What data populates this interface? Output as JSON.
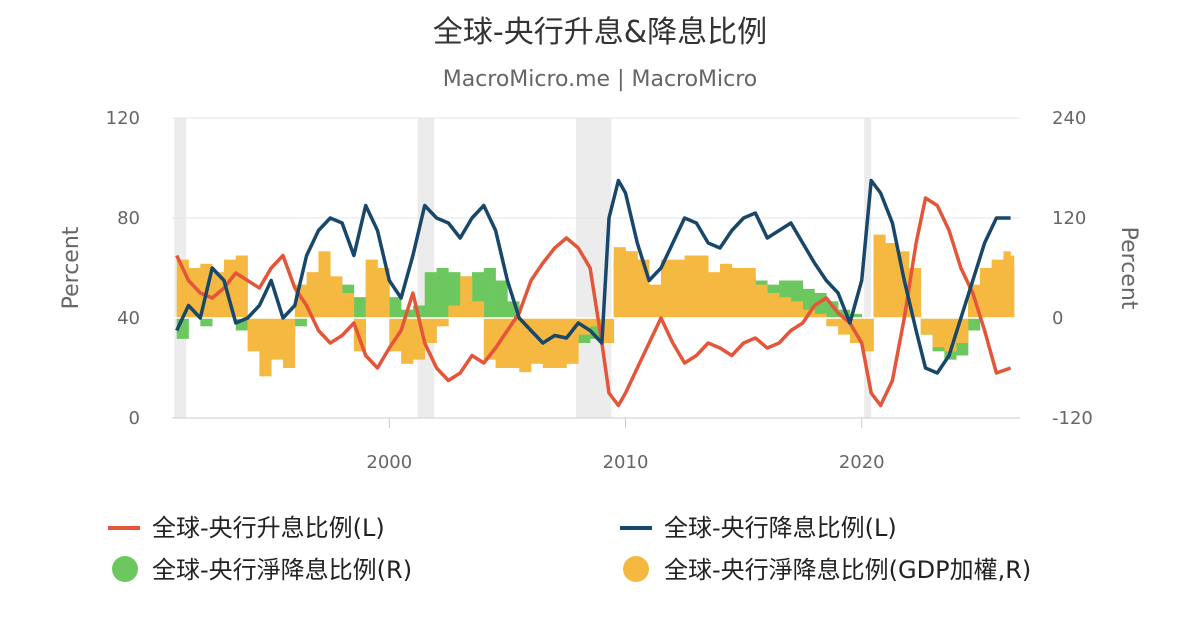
{
  "chart_data": {
    "type": "line",
    "title": "全球-央行升息&降息比例",
    "subtitle": "MacroMicro.me | MacroMicro",
    "left_axis": {
      "label": "Percent",
      "ylim": [
        0,
        120
      ],
      "ticks": [
        "0",
        "40",
        "80",
        "120"
      ]
    },
    "right_axis": {
      "label": "Percent",
      "ylim": [
        -120,
        240
      ],
      "ticks": [
        "-120",
        "0",
        "120",
        "240"
      ]
    },
    "x_axis": {
      "range": [
        1990.8,
        2026.7
      ],
      "ticks": [
        "2000",
        "2010",
        "2020"
      ]
    },
    "recessions": [
      [
        1990.9,
        1991.4
      ],
      [
        2001.2,
        2001.9
      ],
      [
        2007.9,
        2009.4
      ],
      [
        2020.1,
        2020.4
      ]
    ],
    "colors": {
      "hike": "#e4553a",
      "cut": "#19476a",
      "net_cut": "#6cc75f",
      "net_cut_gdp": "#f5b841",
      "recession": "#ececec"
    },
    "series": [
      {
        "name": "全球-央行升息比例(L)",
        "axis": "left",
        "kind": "line",
        "x": [
          1991.0,
          1991.5,
          1992.0,
          1992.5,
          1993.0,
          1993.5,
          1994.0,
          1994.5,
          1995.0,
          1995.5,
          1996.0,
          1996.5,
          1997.0,
          1997.5,
          1998.0,
          1998.5,
          1999.0,
          1999.5,
          2000.0,
          2000.5,
          2001.0,
          2001.5,
          2002.0,
          2002.5,
          2003.0,
          2003.5,
          2004.0,
          2004.5,
          2005.0,
          2005.5,
          2006.0,
          2006.5,
          2007.0,
          2007.5,
          2008.0,
          2008.5,
          2009.0,
          2009.3,
          2009.7,
          2010.0,
          2010.5,
          2011.0,
          2011.5,
          2012.0,
          2012.5,
          2013.0,
          2013.5,
          2014.0,
          2014.5,
          2015.0,
          2015.5,
          2016.0,
          2016.5,
          2017.0,
          2017.5,
          2018.0,
          2018.5,
          2019.0,
          2019.5,
          2020.0,
          2020.4,
          2020.8,
          2021.3,
          2021.8,
          2022.3,
          2022.7,
          2023.2,
          2023.7,
          2024.2,
          2024.7,
          2025.2,
          2025.7,
          2026.3
        ],
        "values": [
          65,
          55,
          50,
          48,
          52,
          58,
          55,
          52,
          60,
          65,
          52,
          45,
          35,
          30,
          33,
          38,
          25,
          20,
          28,
          35,
          50,
          30,
          20,
          15,
          18,
          25,
          22,
          28,
          35,
          42,
          55,
          62,
          68,
          72,
          68,
          60,
          30,
          10,
          5,
          10,
          20,
          30,
          40,
          30,
          22,
          25,
          30,
          28,
          25,
          30,
          32,
          28,
          30,
          35,
          38,
          45,
          48,
          42,
          38,
          30,
          10,
          5,
          15,
          40,
          70,
          88,
          85,
          75,
          60,
          50,
          35,
          18,
          20
        ]
      },
      {
        "name": "全球-央行降息比例(L)",
        "axis": "left",
        "kind": "line",
        "x": [
          1991.0,
          1991.5,
          1992.0,
          1992.5,
          1993.0,
          1993.5,
          1994.0,
          1994.5,
          1995.0,
          1995.5,
          1996.0,
          1996.5,
          1997.0,
          1997.5,
          1998.0,
          1998.5,
          1999.0,
          1999.5,
          2000.0,
          2000.5,
          2001.0,
          2001.5,
          2002.0,
          2002.5,
          2003.0,
          2003.5,
          2004.0,
          2004.5,
          2005.0,
          2005.5,
          2006.0,
          2006.5,
          2007.0,
          2007.5,
          2008.0,
          2008.5,
          2009.0,
          2009.3,
          2009.7,
          2010.0,
          2010.5,
          2011.0,
          2011.5,
          2012.0,
          2012.5,
          2013.0,
          2013.5,
          2014.0,
          2014.5,
          2015.0,
          2015.5,
          2016.0,
          2016.5,
          2017.0,
          2017.5,
          2018.0,
          2018.5,
          2019.0,
          2019.5,
          2020.0,
          2020.4,
          2020.8,
          2021.3,
          2021.8,
          2022.3,
          2022.7,
          2023.2,
          2023.7,
          2024.2,
          2024.7,
          2025.2,
          2025.7,
          2026.3
        ],
        "values": [
          35,
          45,
          40,
          60,
          55,
          38,
          40,
          45,
          55,
          40,
          45,
          65,
          75,
          80,
          78,
          65,
          85,
          75,
          55,
          48,
          65,
          85,
          80,
          78,
          72,
          80,
          85,
          75,
          55,
          40,
          35,
          30,
          33,
          32,
          38,
          35,
          30,
          80,
          95,
          90,
          70,
          55,
          60,
          70,
          80,
          78,
          70,
          68,
          75,
          80,
          82,
          72,
          75,
          78,
          70,
          62,
          55,
          50,
          38,
          55,
          95,
          90,
          78,
          55,
          35,
          20,
          18,
          25,
          40,
          55,
          70,
          80,
          80
        ]
      },
      {
        "name": "全球-央行淨降息比例(R)",
        "axis": "right",
        "kind": "bar",
        "x": [
          1991.0,
          1991.5,
          1992.0,
          1992.5,
          1993.0,
          1993.5,
          1994.0,
          1994.5,
          1995.0,
          1995.5,
          1996.0,
          1996.5,
          1997.0,
          1997.5,
          1998.0,
          1998.5,
          1999.0,
          1999.5,
          2000.0,
          2000.5,
          2001.0,
          2001.5,
          2002.0,
          2002.5,
          2003.0,
          2003.5,
          2004.0,
          2004.5,
          2005.0,
          2005.5,
          2006.0,
          2006.5,
          2007.0,
          2007.5,
          2008.0,
          2008.5,
          2009.0,
          2009.5,
          2010.0,
          2010.5,
          2011.0,
          2011.5,
          2012.0,
          2012.5,
          2013.0,
          2013.5,
          2014.0,
          2014.5,
          2015.0,
          2015.5,
          2016.0,
          2016.5,
          2017.0,
          2017.5,
          2018.0,
          2018.5,
          2019.0,
          2019.5,
          2020.0,
          2020.5,
          2021.0,
          2021.5,
          2022.0,
          2022.5,
          2023.0,
          2023.5,
          2024.0,
          2024.5,
          2025.0,
          2025.5,
          2026.0,
          2026.3
        ],
        "values": [
          -25,
          5,
          -10,
          15,
          5,
          -15,
          -10,
          -5,
          -5,
          -20,
          -10,
          10,
          40,
          45,
          40,
          25,
          55,
          50,
          25,
          10,
          15,
          55,
          60,
          55,
          50,
          55,
          60,
          45,
          20,
          -5,
          -20,
          -30,
          -35,
          -40,
          -30,
          -25,
          -10,
          70,
          80,
          50,
          35,
          25,
          30,
          55,
          50,
          45,
          40,
          45,
          50,
          45,
          40,
          45,
          45,
          35,
          30,
          20,
          10,
          5,
          -5,
          60,
          70,
          60,
          10,
          -20,
          -40,
          -50,
          -45,
          -15,
          10,
          30,
          55,
          60
        ]
      },
      {
        "name": "全球-央行淨降息比例(GDP加權,R)",
        "axis": "right",
        "kind": "bar",
        "x": [
          1991.0,
          1991.5,
          1992.0,
          1992.5,
          1993.0,
          1993.5,
          1994.0,
          1994.5,
          1995.0,
          1995.5,
          1996.0,
          1996.5,
          1997.0,
          1997.5,
          1998.0,
          1998.5,
          1999.0,
          1999.5,
          2000.0,
          2000.5,
          2001.0,
          2001.5,
          2002.0,
          2002.5,
          2003.0,
          2003.5,
          2004.0,
          2004.5,
          2005.0,
          2005.5,
          2006.0,
          2006.5,
          2007.0,
          2007.5,
          2008.0,
          2008.5,
          2009.0,
          2009.5,
          2010.0,
          2010.5,
          2011.0,
          2011.5,
          2012.0,
          2012.5,
          2013.0,
          2013.5,
          2014.0,
          2014.5,
          2015.0,
          2015.5,
          2016.0,
          2016.5,
          2017.0,
          2017.5,
          2018.0,
          2018.5,
          2019.0,
          2019.5,
          2020.0,
          2020.5,
          2021.0,
          2021.5,
          2022.0,
          2022.5,
          2023.0,
          2023.5,
          2024.0,
          2024.5,
          2025.0,
          2025.5,
          2026.0,
          2026.3
        ],
        "values": [
          70,
          60,
          65,
          55,
          70,
          75,
          -40,
          -70,
          -50,
          -60,
          40,
          55,
          80,
          50,
          30,
          -40,
          70,
          60,
          -40,
          -55,
          -50,
          -30,
          -10,
          15,
          50,
          20,
          -50,
          -60,
          -60,
          -65,
          -55,
          -60,
          -60,
          -55,
          -20,
          -10,
          -30,
          85,
          80,
          70,
          40,
          70,
          70,
          75,
          75,
          55,
          65,
          60,
          60,
          40,
          30,
          25,
          20,
          10,
          5,
          -10,
          -20,
          -30,
          -40,
          100,
          90,
          80,
          60,
          -20,
          -35,
          -40,
          -30,
          40,
          60,
          70,
          80,
          75
        ]
      }
    ],
    "legend": [
      "全球-央行升息比例(L)",
      "全球-央行降息比例(L)",
      "全球-央行淨降息比例(R)",
      "全球-央行淨降息比例(GDP加權,R)"
    ]
  }
}
